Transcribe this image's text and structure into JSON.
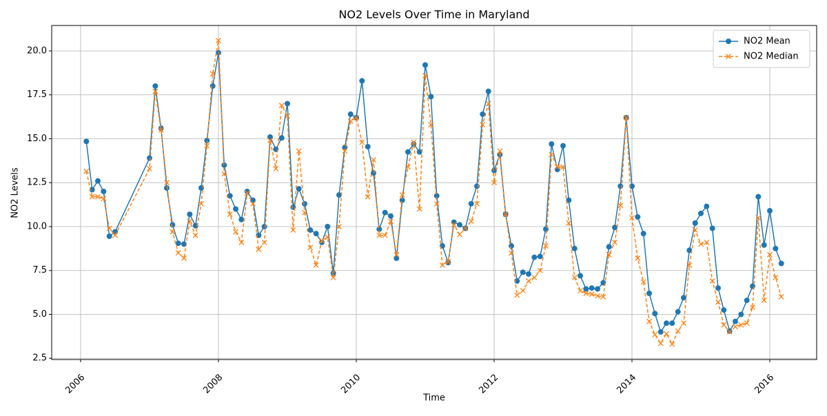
{
  "chart_data": {
    "type": "line",
    "title": "NO2 Levels Over Time in Maryland",
    "x_label": "Time",
    "y_label": "NO2 Levels",
    "x": [
      2006.083,
      2006.167,
      2006.25,
      2006.333,
      2006.417,
      2006.5,
      2007.0,
      2007.083,
      2007.167,
      2007.25,
      2007.333,
      2007.417,
      2007.5,
      2007.583,
      2007.667,
      2007.75,
      2007.833,
      2007.917,
      2008.0,
      2008.083,
      2008.167,
      2008.25,
      2008.333,
      2008.417,
      2008.5,
      2008.583,
      2008.667,
      2008.75,
      2008.833,
      2008.917,
      2009.0,
      2009.083,
      2009.167,
      2009.25,
      2009.333,
      2009.417,
      2009.5,
      2009.583,
      2009.667,
      2009.75,
      2009.833,
      2009.917,
      2010.0,
      2010.083,
      2010.167,
      2010.25,
      2010.333,
      2010.417,
      2010.5,
      2010.583,
      2010.667,
      2010.75,
      2010.833,
      2010.917,
      2011.0,
      2011.083,
      2011.167,
      2011.25,
      2011.333,
      2011.417,
      2011.5,
      2011.583,
      2011.667,
      2011.75,
      2011.833,
      2011.917,
      2012.0,
      2012.083,
      2012.167,
      2012.25,
      2012.333,
      2012.417,
      2012.5,
      2012.583,
      2012.667,
      2012.75,
      2012.833,
      2012.917,
      2013.0,
      2013.083,
      2013.167,
      2013.25,
      2013.333,
      2013.417,
      2013.5,
      2013.583,
      2013.667,
      2013.75,
      2013.833,
      2013.917,
      2014.0,
      2014.083,
      2014.167,
      2014.25,
      2014.333,
      2014.417,
      2014.5,
      2014.583,
      2014.667,
      2014.75,
      2014.833,
      2014.917,
      2015.0,
      2015.083,
      2015.167,
      2015.25,
      2015.333,
      2015.417,
      2015.5,
      2015.583,
      2015.667,
      2015.75,
      2015.833,
      2015.917,
      2016.0,
      2016.083,
      2016.167
    ],
    "series": [
      {
        "name": "NO2 Mean",
        "color": "#1f77b4",
        "marker": "o",
        "dashed": false,
        "values": [
          14.85,
          12.1,
          12.6,
          12.0,
          9.45,
          9.7,
          13.9,
          18.0,
          15.6,
          12.2,
          10.1,
          9.05,
          9.0,
          10.7,
          10.05,
          12.2,
          14.9,
          18.0,
          19.9,
          13.5,
          11.75,
          11.0,
          10.4,
          12.0,
          11.5,
          9.5,
          10.0,
          15.1,
          14.4,
          15.05,
          17.0,
          11.1,
          12.15,
          11.3,
          9.8,
          9.6,
          9.1,
          10.0,
          7.35,
          11.8,
          14.5,
          16.4,
          16.2,
          18.3,
          14.55,
          13.05,
          9.85,
          10.8,
          10.6,
          8.2,
          11.5,
          14.25,
          14.7,
          14.25,
          19.2,
          17.4,
          11.75,
          8.9,
          7.95,
          10.25,
          10.1,
          9.9,
          11.3,
          12.3,
          16.4,
          17.7,
          13.2,
          14.1,
          10.7,
          8.9,
          6.9,
          7.4,
          7.3,
          8.25,
          8.3,
          9.85,
          14.7,
          13.25,
          14.6,
          11.5,
          8.75,
          7.2,
          6.45,
          6.5,
          6.45,
          6.8,
          8.85,
          9.95,
          12.3,
          16.2,
          12.3,
          10.55,
          9.6,
          6.2,
          5.05,
          4.0,
          4.5,
          4.5,
          5.15,
          5.95,
          8.65,
          10.2,
          10.75,
          11.15,
          9.9,
          6.5,
          5.25,
          4.05,
          4.6,
          5.0,
          5.8,
          6.6,
          11.7,
          8.95,
          10.9,
          8.75,
          7.9
        ]
      },
      {
        "name": "NO2 Median",
        "color": "#ff7f0e",
        "marker": "x",
        "dashed": true,
        "values": [
          13.15,
          11.7,
          11.7,
          11.6,
          9.9,
          9.5,
          13.3,
          17.7,
          15.5,
          12.5,
          9.7,
          8.5,
          8.2,
          10.3,
          9.5,
          11.3,
          14.6,
          18.7,
          20.6,
          13.0,
          10.7,
          9.7,
          9.1,
          11.9,
          11.3,
          8.7,
          9.1,
          14.9,
          13.3,
          16.9,
          16.3,
          9.8,
          14.3,
          10.8,
          8.8,
          7.8,
          9.2,
          9.4,
          7.1,
          10.0,
          14.3,
          16.0,
          16.2,
          14.8,
          11.7,
          13.8,
          9.5,
          9.5,
          10.3,
          8.4,
          11.8,
          13.4,
          14.8,
          11.0,
          18.6,
          15.8,
          11.3,
          7.8,
          8.0,
          10.1,
          9.55,
          9.9,
          10.3,
          11.3,
          15.8,
          17.0,
          12.5,
          14.3,
          10.7,
          8.5,
          6.1,
          6.35,
          6.9,
          7.1,
          7.5,
          8.9,
          14.1,
          13.4,
          13.4,
          10.2,
          7.1,
          6.35,
          6.2,
          6.15,
          6.05,
          6.0,
          8.4,
          9.1,
          11.2,
          16.2,
          10.5,
          8.2,
          6.85,
          4.6,
          3.85,
          3.35,
          3.9,
          3.3,
          4.05,
          4.5,
          7.8,
          9.8,
          9.0,
          9.1,
          6.9,
          5.7,
          4.4,
          4.0,
          4.3,
          4.4,
          4.5,
          5.4,
          10.5,
          5.8,
          8.4,
          7.1,
          6.0
        ]
      }
    ],
    "xlim": [
      2005.58,
      2016.68
    ],
    "xticks": [
      2006,
      2008,
      2010,
      2012,
      2014,
      2016
    ],
    "ylim": [
      2.43,
      21.45
    ],
    "yticks": [
      2.5,
      {
        "value": 5,
        "label": "5.0"
      },
      7.5,
      {
        "value": 10,
        "label": "10.0"
      },
      12.5,
      {
        "value": 15,
        "label": "15.0"
      },
      17.5,
      {
        "value": 20,
        "label": "20.0"
      }
    ],
    "grid": true,
    "legend": "upper right"
  }
}
